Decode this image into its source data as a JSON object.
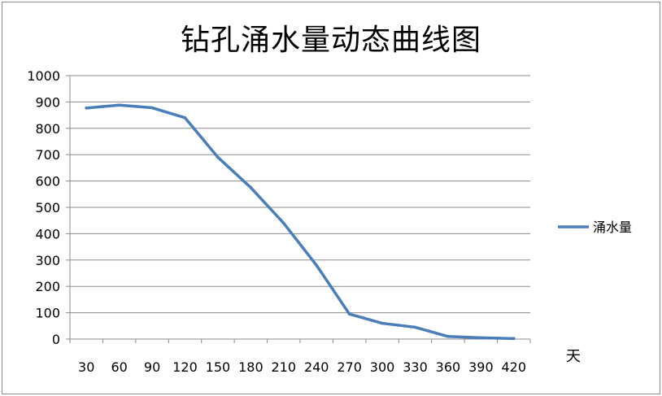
{
  "chart_data": {
    "type": "line",
    "title": "钻孔涌水量动态曲线图",
    "xlabel": "天",
    "ylabel": "",
    "x": [
      30,
      60,
      90,
      120,
      150,
      180,
      210,
      240,
      270,
      300,
      330,
      360,
      390,
      420
    ],
    "series": [
      {
        "name": "涌水量",
        "color": "#4a7ebb",
        "values": [
          877,
          888,
          878,
          840,
          690,
          575,
          440,
          280,
          95,
          60,
          45,
          10,
          5,
          2
        ]
      }
    ],
    "ylim": [
      0,
      1000
    ],
    "yticks": [
      0,
      100,
      200,
      300,
      400,
      500,
      600,
      700,
      800,
      900,
      1000
    ],
    "xtick_labels": [
      "30",
      "60",
      "90",
      "120",
      "150",
      "180",
      "210",
      "240",
      "270",
      "300",
      "330",
      "360",
      "390",
      "420"
    ],
    "grid": true,
    "legend_position": "right"
  }
}
